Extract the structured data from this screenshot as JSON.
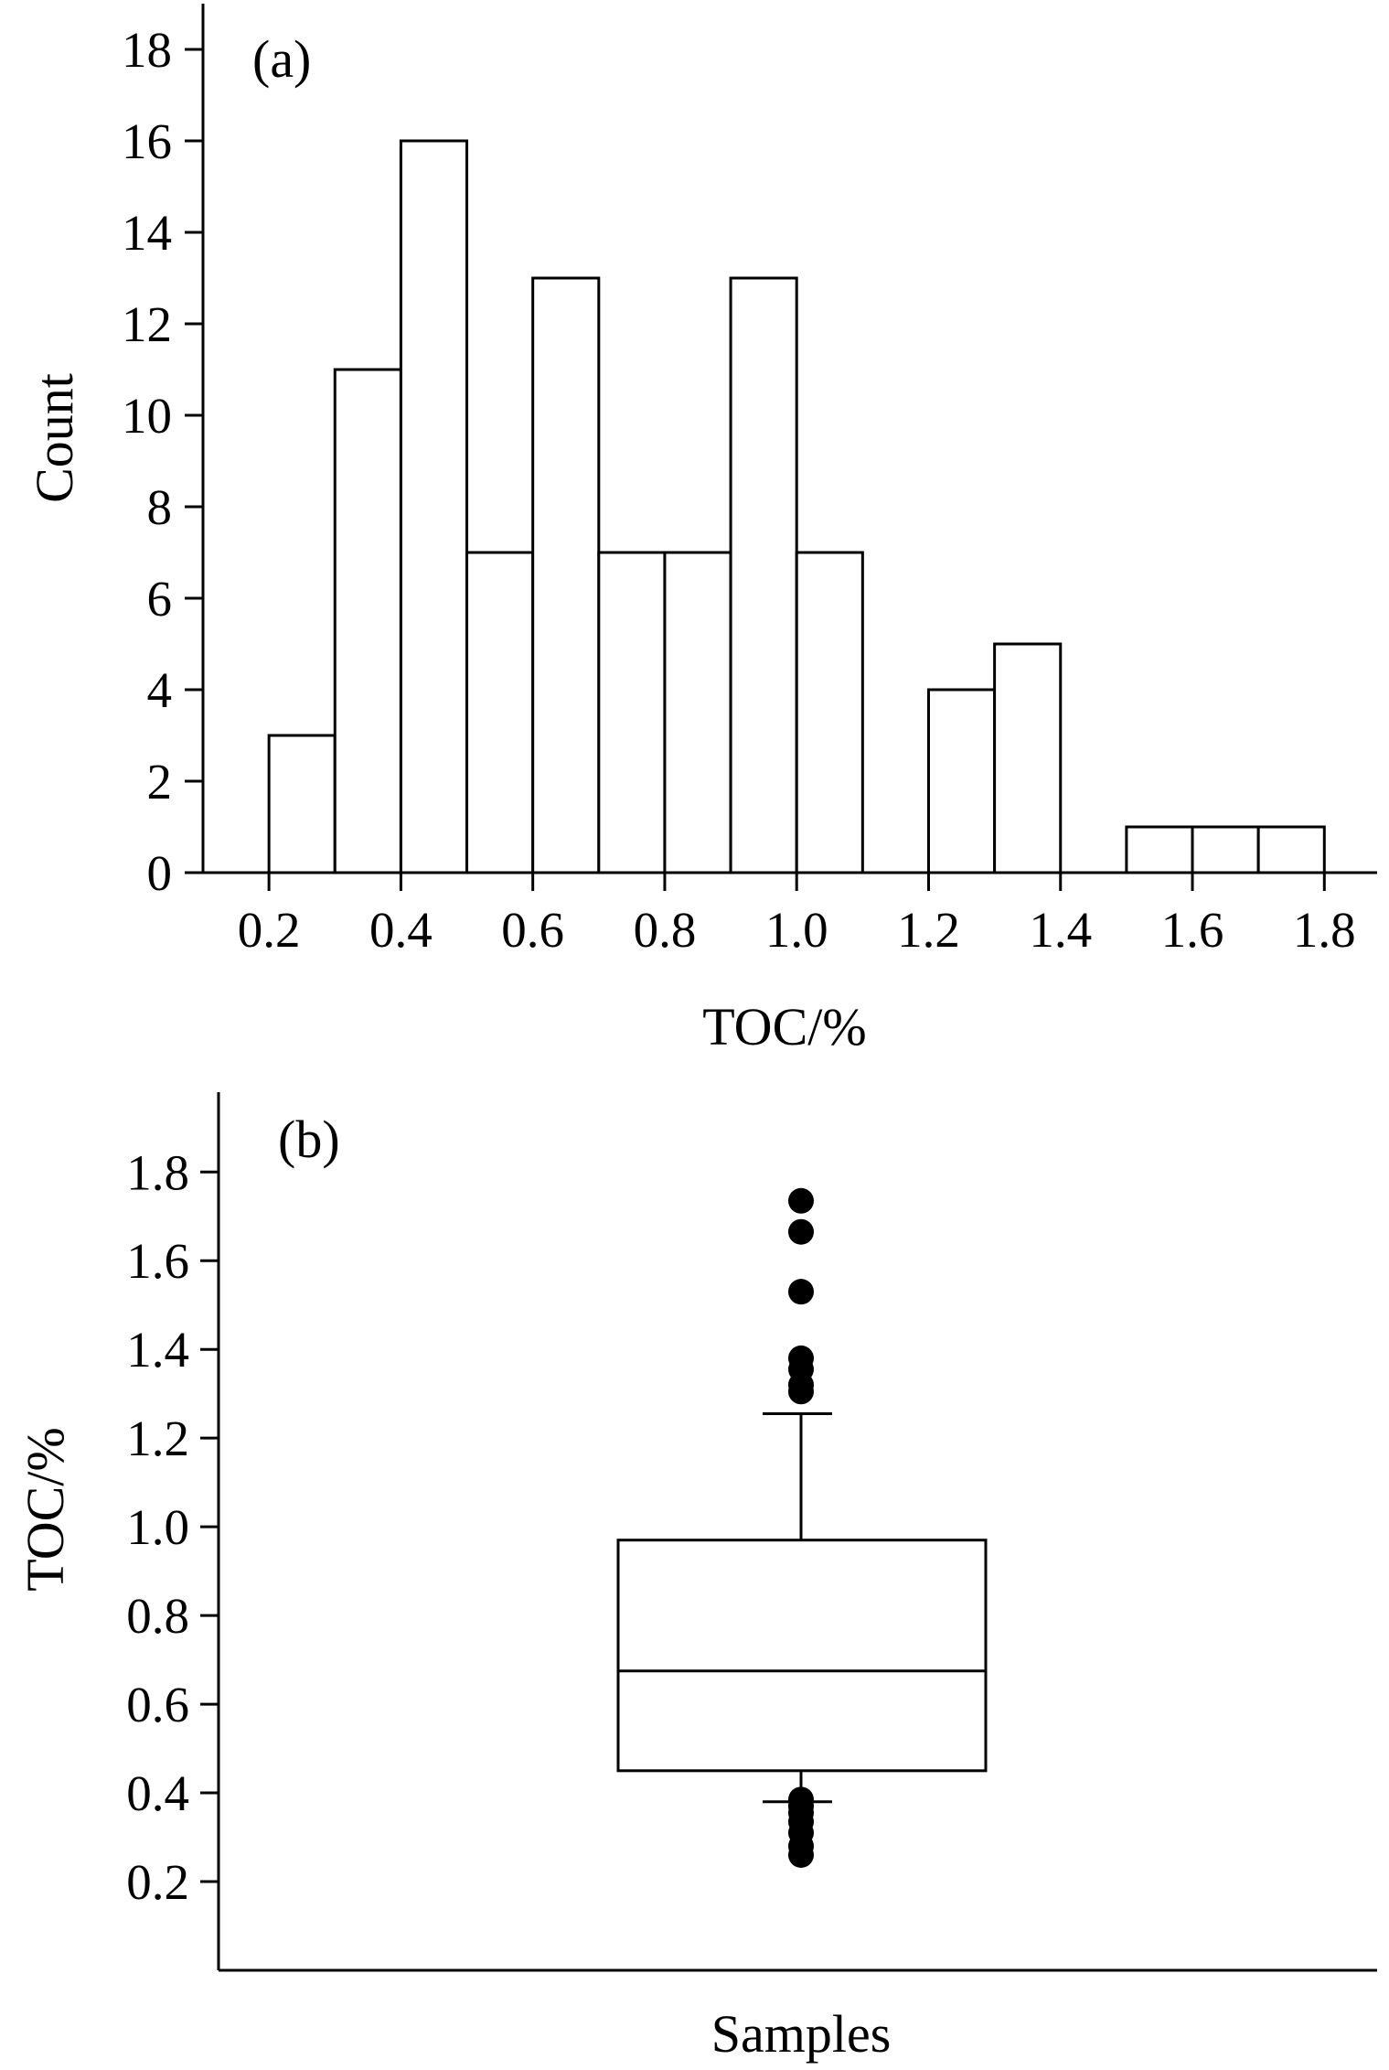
{
  "chart_data": [
    {
      "type": "bar",
      "panel_label": "(a)",
      "title": "",
      "xlabel": "TOC/%",
      "ylabel": "Count",
      "bins": [
        {
          "x0": 0.2,
          "x1": 0.3,
          "count": 3
        },
        {
          "x0": 0.3,
          "x1": 0.4,
          "count": 11
        },
        {
          "x0": 0.4,
          "x1": 0.5,
          "count": 16
        },
        {
          "x0": 0.5,
          "x1": 0.6,
          "count": 7
        },
        {
          "x0": 0.6,
          "x1": 0.7,
          "count": 13
        },
        {
          "x0": 0.7,
          "x1": 0.8,
          "count": 7
        },
        {
          "x0": 0.8,
          "x1": 0.9,
          "count": 7
        },
        {
          "x0": 0.9,
          "x1": 1.0,
          "count": 13
        },
        {
          "x0": 1.0,
          "x1": 1.1,
          "count": 7
        },
        {
          "x0": 1.1,
          "x1": 1.2,
          "count": 0
        },
        {
          "x0": 1.2,
          "x1": 1.3,
          "count": 4
        },
        {
          "x0": 1.3,
          "x1": 1.4,
          "count": 5
        },
        {
          "x0": 1.4,
          "x1": 1.5,
          "count": 0
        },
        {
          "x0": 1.5,
          "x1": 1.6,
          "count": 1
        },
        {
          "x0": 1.6,
          "x1": 1.7,
          "count": 1
        },
        {
          "x0": 1.7,
          "x1": 1.8,
          "count": 1
        }
      ],
      "xticks": [
        "0.2",
        "0.4",
        "0.6",
        "0.8",
        "1.0",
        "1.2",
        "1.4",
        "1.6",
        "1.8"
      ],
      "yticks": [
        "0",
        "2",
        "4",
        "6",
        "8",
        "10",
        "12",
        "14",
        "16",
        "18"
      ],
      "xlim": [
        0.1,
        1.88
      ],
      "ylim": [
        0,
        19
      ],
      "bar_fill": "#ffffff",
      "bar_stroke": "#000000"
    },
    {
      "type": "box",
      "panel_label": "(b)",
      "title": "",
      "xlabel": "Samples",
      "ylabel": "TOC/%",
      "box": {
        "whisker_low": 0.38,
        "q1": 0.45,
        "median": 0.675,
        "q3": 0.97,
        "whisker_high": 1.255
      },
      "outliers": [
        1.735,
        1.665,
        1.53,
        1.38,
        1.355,
        1.32,
        1.305,
        0.385,
        0.37,
        0.355,
        0.335,
        0.31,
        0.28,
        0.26
      ],
      "yticks": [
        "0.2",
        "0.4",
        "0.6",
        "0.8",
        "1.0",
        "1.2",
        "1.4",
        "1.6",
        "1.8"
      ],
      "ylim": [
        0.0,
        1.98
      ]
    }
  ]
}
